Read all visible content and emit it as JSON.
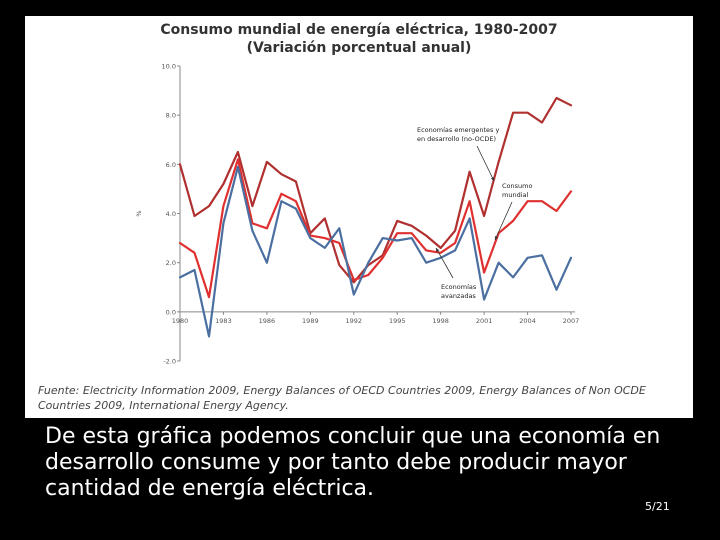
{
  "chart_data": {
    "type": "line",
    "title": "Consumo mundial de energía eléctrica, 1980-2007",
    "subtitle": "(Variación porcentual anual)",
    "ylabel": "%",
    "xlabel": "",
    "ylim": [
      -2.0,
      10.0
    ],
    "xlim": [
      1980,
      2007
    ],
    "y_ticks": [
      -2.0,
      0.0,
      2.0,
      4.0,
      6.0,
      8.0,
      10.0
    ],
    "y_tick_labels": [
      "-2.0",
      "0.0",
      "2.0",
      "4.0",
      "6.0",
      "8.0",
      "10.0"
    ],
    "x_ticks": [
      1980,
      1983,
      1986,
      1989,
      1992,
      1995,
      1998,
      2001,
      2004,
      2007
    ],
    "x_tick_labels": [
      "1980",
      "1983",
      "1986",
      "1989",
      "1992",
      "1995",
      "1998",
      "2001",
      "2004",
      "2007"
    ],
    "x": [
      1980,
      1981,
      1982,
      1983,
      1984,
      1985,
      1986,
      1987,
      1988,
      1989,
      1990,
      1991,
      1992,
      1993,
      1994,
      1995,
      1996,
      1997,
      1998,
      1999,
      2000,
      2001,
      2002,
      2003,
      2004,
      2005,
      2006,
      2007
    ],
    "series": [
      {
        "name": "Economías emergentes y en desarrollo (no-OCDE)",
        "color": "#b03030",
        "values": [
          6.0,
          3.9,
          4.3,
          5.2,
          6.5,
          4.3,
          6.1,
          5.6,
          5.3,
          3.2,
          3.8,
          1.9,
          1.2,
          1.9,
          2.3,
          3.7,
          3.5,
          3.1,
          2.6,
          3.3,
          5.7,
          3.9,
          6.1,
          8.1,
          8.1,
          7.7,
          8.7,
          8.4
        ]
      },
      {
        "name": "Consumo mundial",
        "color": "#e03030",
        "values": [
          2.8,
          2.4,
          0.6,
          4.3,
          6.2,
          3.6,
          3.4,
          4.8,
          4.5,
          3.1,
          3.0,
          2.8,
          1.3,
          1.5,
          2.2,
          3.2,
          3.2,
          2.5,
          2.4,
          2.8,
          4.5,
          1.6,
          3.2,
          3.7,
          4.5,
          4.5,
          4.1,
          4.9
        ]
      },
      {
        "name": "Economías avanzadas",
        "color": "#4a6fa0",
        "values": [
          1.4,
          1.7,
          -1.0,
          3.6,
          5.9,
          3.3,
          2.0,
          4.5,
          4.2,
          3.0,
          2.6,
          3.4,
          0.7,
          2.0,
          3.0,
          2.9,
          3.0,
          2.0,
          2.2,
          2.5,
          3.8,
          0.5,
          2.0,
          1.4,
          2.2,
          2.3,
          0.9,
          2.2
        ]
      }
    ],
    "annotations": [
      {
        "lines": [
          "Economías emergentes y",
          "en desarrollo (no-OCDE)"
        ],
        "series": 0
      },
      {
        "lines": [
          "Consumo",
          "mundial"
        ],
        "series": 1
      },
      {
        "lines": [
          "Economías",
          "avanzadas"
        ],
        "series": 2
      }
    ]
  },
  "source": {
    "text": "Fuente: Electricity Information 2009, Energy Balances of OECD Countries 2009, Energy Balances of Non OCDE Countries 2009, International Energy Agency."
  },
  "caption": {
    "text": "De esta gráfica podemos concluir que una economía en desarrollo consume y por tanto debe producir mayor cantidad de energía eléctrica."
  },
  "page_number": "5/21"
}
